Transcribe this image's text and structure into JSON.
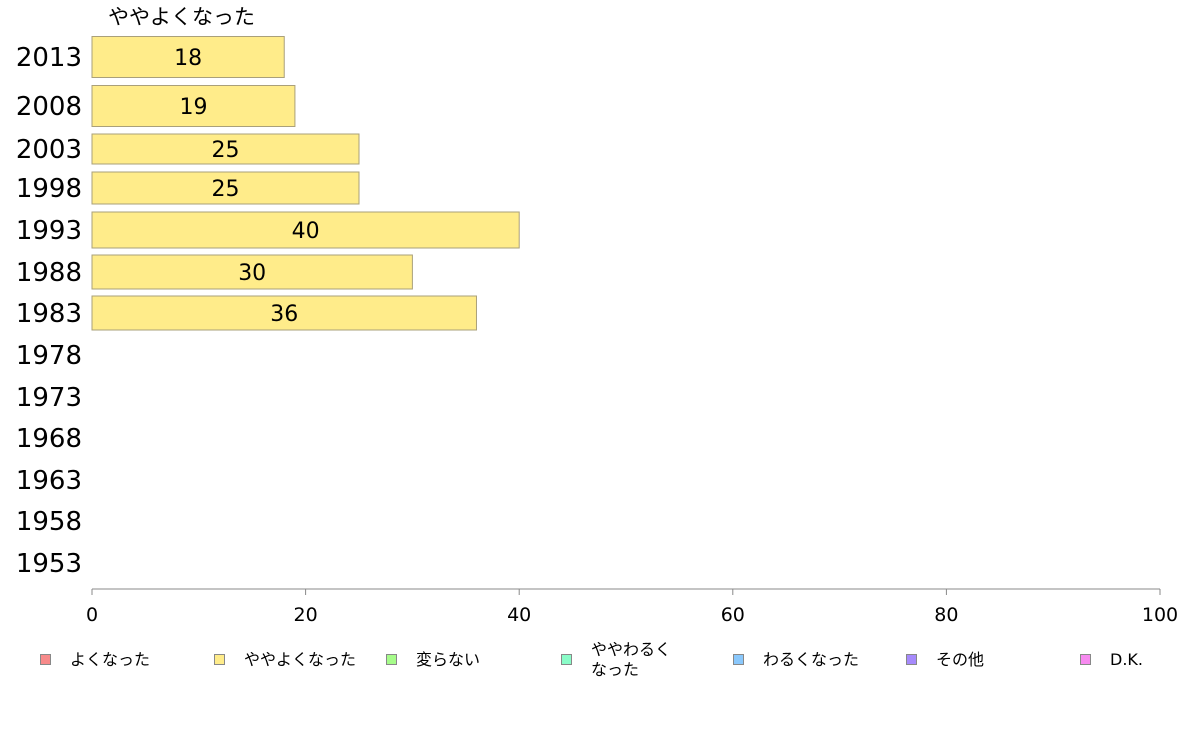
{
  "chart_data": {
    "type": "bar",
    "orientation": "horizontal",
    "title": "ややよくなった",
    "categories": [
      "2013",
      "2008",
      "2003",
      "1998",
      "1993",
      "1988",
      "1983",
      "1978",
      "1973",
      "1968",
      "1963",
      "1958",
      "1953"
    ],
    "series": [
      {
        "name": "ややよくなった",
        "values": [
          18,
          19,
          25,
          25,
          40,
          30,
          36,
          null,
          null,
          null,
          null,
          null,
          null
        ],
        "labels": [
          "18",
          "19",
          "25",
          "25",
          "40",
          "30",
          "36",
          "",
          "",
          "",
          "",
          "",
          ""
        ],
        "color": "#FFEC8A"
      }
    ],
    "xlim": [
      0,
      100
    ],
    "xticks": [
      0,
      20,
      40,
      60,
      80,
      100
    ],
    "grid": false,
    "legend_position": "bottom"
  },
  "legend": {
    "items": [
      {
        "label": "よくなった",
        "color": "#F78A8A"
      },
      {
        "label": "ややよくなった",
        "color": "#FFEC8A"
      },
      {
        "label": "変らない",
        "color": "#A6FC8A"
      },
      {
        "label": "ややわるく なった",
        "color": "#8AFCC8"
      },
      {
        "label": "わるくなった",
        "color": "#8AC8FC"
      },
      {
        "label": "その他",
        "color": "#A68AFC"
      },
      {
        "label": "D.K.",
        "color": "#F78AF0"
      }
    ]
  }
}
